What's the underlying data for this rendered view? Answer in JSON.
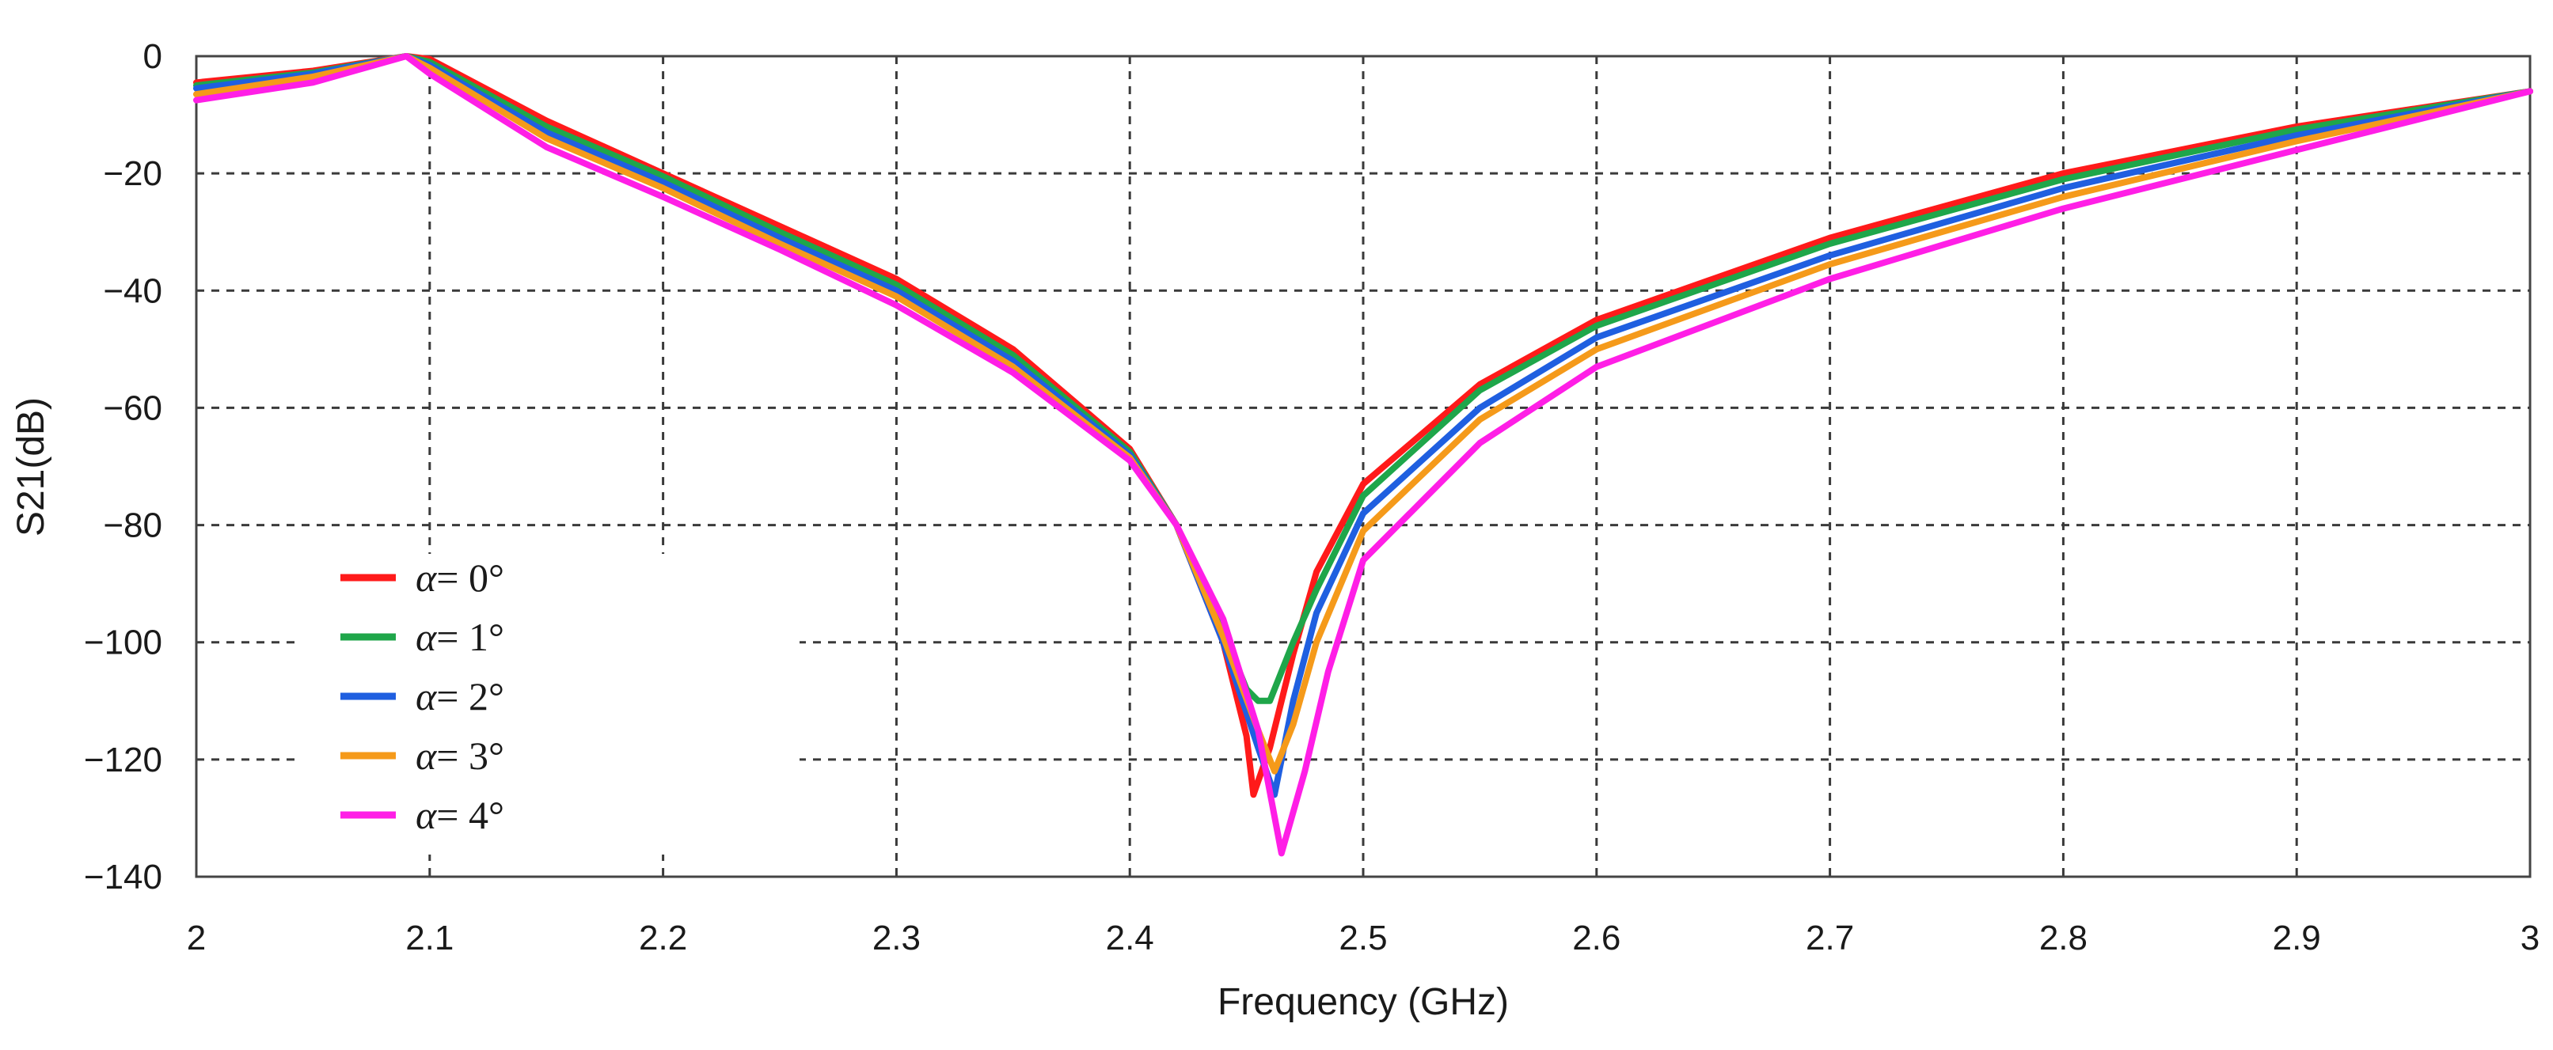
{
  "chart_data": {
    "type": "line",
    "title": "",
    "xlabel": "Frequency (GHz)",
    "ylabel": "S21(dB)",
    "xlim": [
      2,
      3
    ],
    "ylim": [
      -140,
      0
    ],
    "grid": true,
    "legend_position": "left",
    "x_ticks": [
      {
        "value": 2.0,
        "label": "2"
      },
      {
        "value": 2.1,
        "label": "2.1"
      },
      {
        "value": 2.2,
        "label": "2.2"
      },
      {
        "value": 2.3,
        "label": "2.3"
      },
      {
        "value": 2.4,
        "label": "2.4"
      },
      {
        "value": 2.5,
        "label": "2.5"
      },
      {
        "value": 2.6,
        "label": "2.6"
      },
      {
        "value": 2.7,
        "label": "2.7"
      },
      {
        "value": 2.8,
        "label": "2.8"
      },
      {
        "value": 2.9,
        "label": "2.9"
      },
      {
        "value": 3.0,
        "label": "3"
      }
    ],
    "y_ticks": [
      {
        "value": 0,
        "label": "0"
      },
      {
        "value": -20,
        "label": "−20"
      },
      {
        "value": -40,
        "label": "−40"
      },
      {
        "value": -60,
        "label": "−60"
      },
      {
        "value": -80,
        "label": "−80"
      },
      {
        "value": -100,
        "label": "−100"
      },
      {
        "value": -120,
        "label": "−120"
      },
      {
        "value": -140,
        "label": "−140"
      }
    ],
    "series": [
      {
        "name": "α = 0°",
        "symbol": "α",
        "suffix": "= 0°",
        "color": "#ff1a1a",
        "x": [
          2.0,
          2.05,
          2.09,
          2.1,
          2.15,
          2.2,
          2.25,
          2.3,
          2.35,
          2.4,
          2.42,
          2.44,
          2.45,
          2.453,
          2.46,
          2.47,
          2.48,
          2.5,
          2.55,
          2.6,
          2.7,
          2.8,
          2.9,
          3.0
        ],
        "y": [
          -4.5,
          -2.5,
          0,
          -0.5,
          -11,
          -20,
          -29,
          -38,
          -50,
          -67,
          -80,
          -100,
          -116,
          -126,
          -118,
          -102,
          -88,
          -73,
          -56,
          -45,
          -31,
          -20,
          -12,
          -6
        ]
      },
      {
        "name": "α = 1°",
        "symbol": "α",
        "suffix": "= 1°",
        "color": "#1fa64a",
        "x": [
          2.0,
          2.05,
          2.09,
          2.1,
          2.15,
          2.2,
          2.25,
          2.3,
          2.35,
          2.4,
          2.42,
          2.44,
          2.45,
          2.455,
          2.46,
          2.462,
          2.47,
          2.48,
          2.5,
          2.55,
          2.6,
          2.7,
          2.8,
          2.9,
          3.0
        ],
        "y": [
          -5,
          -2.8,
          0,
          -1,
          -12,
          -20.5,
          -30,
          -39,
          -51,
          -67.5,
          -80,
          -98,
          -108,
          -110,
          -110,
          -108,
          -100,
          -91,
          -75,
          -57,
          -46,
          -32,
          -21,
          -12.5,
          -6
        ]
      },
      {
        "name": "α = 2°",
        "symbol": "α",
        "suffix": "= 2°",
        "color": "#1f5fe0",
        "x": [
          2.0,
          2.05,
          2.09,
          2.1,
          2.15,
          2.2,
          2.25,
          2.3,
          2.35,
          2.4,
          2.42,
          2.44,
          2.455,
          2.462,
          2.47,
          2.48,
          2.5,
          2.55,
          2.6,
          2.7,
          2.8,
          2.9,
          3.0
        ],
        "y": [
          -5.5,
          -3,
          0,
          -1.5,
          -13,
          -21.5,
          -31,
          -40,
          -52,
          -68,
          -80,
          -100,
          -118,
          -126,
          -110,
          -95,
          -78,
          -60,
          -48,
          -34,
          -22.5,
          -13.5,
          -6
        ]
      },
      {
        "name": "α = 3°",
        "symbol": "α",
        "suffix": "= 3°",
        "color": "#f59a1a",
        "x": [
          2.0,
          2.05,
          2.09,
          2.1,
          2.15,
          2.2,
          2.25,
          2.3,
          2.35,
          2.4,
          2.42,
          2.44,
          2.455,
          2.462,
          2.47,
          2.48,
          2.5,
          2.55,
          2.6,
          2.7,
          2.8,
          2.9,
          3.0
        ],
        "y": [
          -6.5,
          -3.5,
          0,
          -2,
          -14,
          -22.5,
          -32,
          -41,
          -53,
          -68.5,
          -80,
          -99,
          -115,
          -122,
          -114,
          -100,
          -81,
          -62,
          -50,
          -35.5,
          -24,
          -14.5,
          -6
        ]
      },
      {
        "name": "α = 4°",
        "symbol": "α",
        "suffix": "= 4°",
        "color": "#ff1ee6",
        "x": [
          2.0,
          2.05,
          2.09,
          2.1,
          2.15,
          2.2,
          2.25,
          2.3,
          2.35,
          2.4,
          2.42,
          2.44,
          2.455,
          2.465,
          2.475,
          2.485,
          2.5,
          2.55,
          2.6,
          2.7,
          2.8,
          2.9,
          3.0
        ],
        "y": [
          -7.5,
          -4.5,
          0,
          -3,
          -15.5,
          -24,
          -33,
          -42.5,
          -54,
          -69,
          -80,
          -96,
          -115,
          -136,
          -122,
          -105,
          -86,
          -66,
          -53,
          -38,
          -26,
          -16,
          -6
        ]
      }
    ]
  }
}
